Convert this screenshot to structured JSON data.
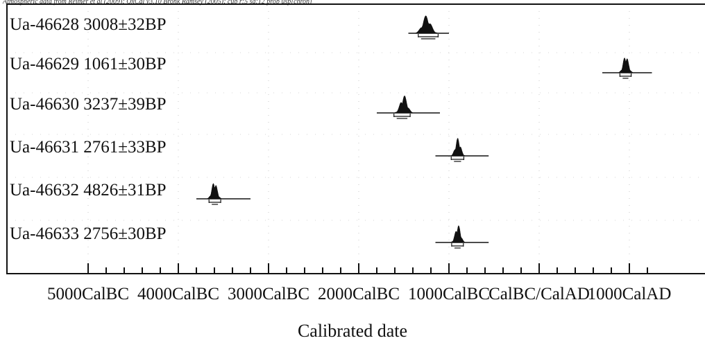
{
  "citation": "Atmospheric data from Reimer et al (2009); OxCal v3.10 Bronk Ramsey (2005); cub r:5 sd:12 prob usp[chron]",
  "chart_data": {
    "type": "range",
    "xlabel": "Calibrated date",
    "xlim": [
      -5000,
      1300
    ],
    "x_ticks": [
      {
        "value": -5000,
        "label": "5000CalBC"
      },
      {
        "value": -4000,
        "label": "4000CalBC"
      },
      {
        "value": -3000,
        "label": "3000CalBC"
      },
      {
        "value": -2000,
        "label": "2000CalBC"
      },
      {
        "value": -1000,
        "label": "1000CalBC"
      },
      {
        "value": 0,
        "label": "CalBC/CalAD"
      },
      {
        "value": 1000,
        "label": "1000CalAD"
      }
    ],
    "grid": true,
    "samples": [
      {
        "id": "Ua-46628",
        "age": "3008±32BP",
        "center": -1250,
        "range": [
          -1340,
          -1120
        ],
        "spread": [
          -1450,
          -1000
        ]
      },
      {
        "id": "Ua-46629",
        "age": "1061±30BP",
        "center": 960,
        "range": [
          895,
          1020
        ],
        "spread": [
          700,
          1250
        ]
      },
      {
        "id": "Ua-46630",
        "age": "3237±39BP",
        "center": -1500,
        "range": [
          -1610,
          -1430
        ],
        "spread": [
          -1800,
          -1100
        ]
      },
      {
        "id": "Ua-46631",
        "age": "2761±33BP",
        "center": -900,
        "range": [
          -975,
          -835
        ],
        "spread": [
          -1150,
          -560
        ]
      },
      {
        "id": "Ua-46632",
        "age": "4826±31BP",
        "center": -3600,
        "range": [
          -3660,
          -3530
        ],
        "spread": [
          -3800,
          -3200
        ]
      },
      {
        "id": "Ua-46633",
        "age": "2756±30BP",
        "center": -900,
        "range": [
          -970,
          -840
        ],
        "spread": [
          -1150,
          -560
        ]
      }
    ]
  }
}
